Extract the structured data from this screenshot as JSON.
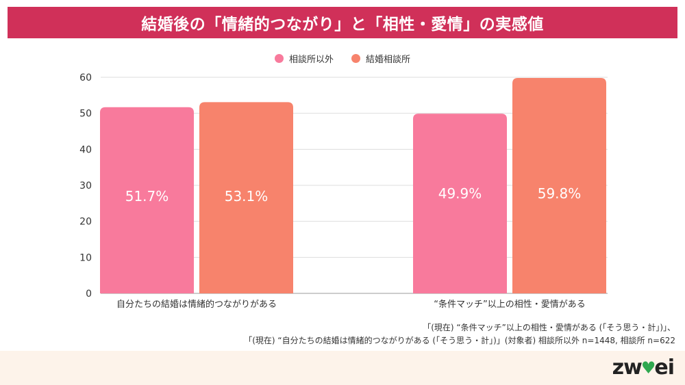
{
  "title": "結婚後の「情緒的つながり」と「相性・愛情」の実感値",
  "chart_data": {
    "type": "bar",
    "categories": [
      "自分たちの結婚は情緒的つながりがある",
      "“条件マッチ”以上の相性・愛情がある"
    ],
    "series": [
      {
        "name": "相談所以外",
        "values": [
          51.7,
          49.9
        ],
        "labels": [
          "51.7%",
          "49.9%"
        ],
        "color": "#f87a9c"
      },
      {
        "name": "結婚相談所",
        "values": [
          53.1,
          59.8
        ],
        "labels": [
          "53.1%",
          "59.8%"
        ],
        "color": "#f7836c"
      }
    ],
    "ylim": [
      0,
      60
    ],
    "yticks": [
      "0",
      "10",
      "20",
      "30",
      "40",
      "50",
      "60"
    ],
    "grid": true,
    "legend_position": "top-center"
  },
  "footnotes": [
    "「(現在) “条件マッチ”以上の相性・愛情がある (「そう思う・計」)」、",
    "「(現在) “自分たちの結婚は情緒的つながりがある (「そう思う・計」)」(対象者) 相談所以外 n=1448, 相談所 n=622"
  ],
  "logo": {
    "text_left": "zw",
    "text_right": "ei",
    "heart": "♥"
  }
}
